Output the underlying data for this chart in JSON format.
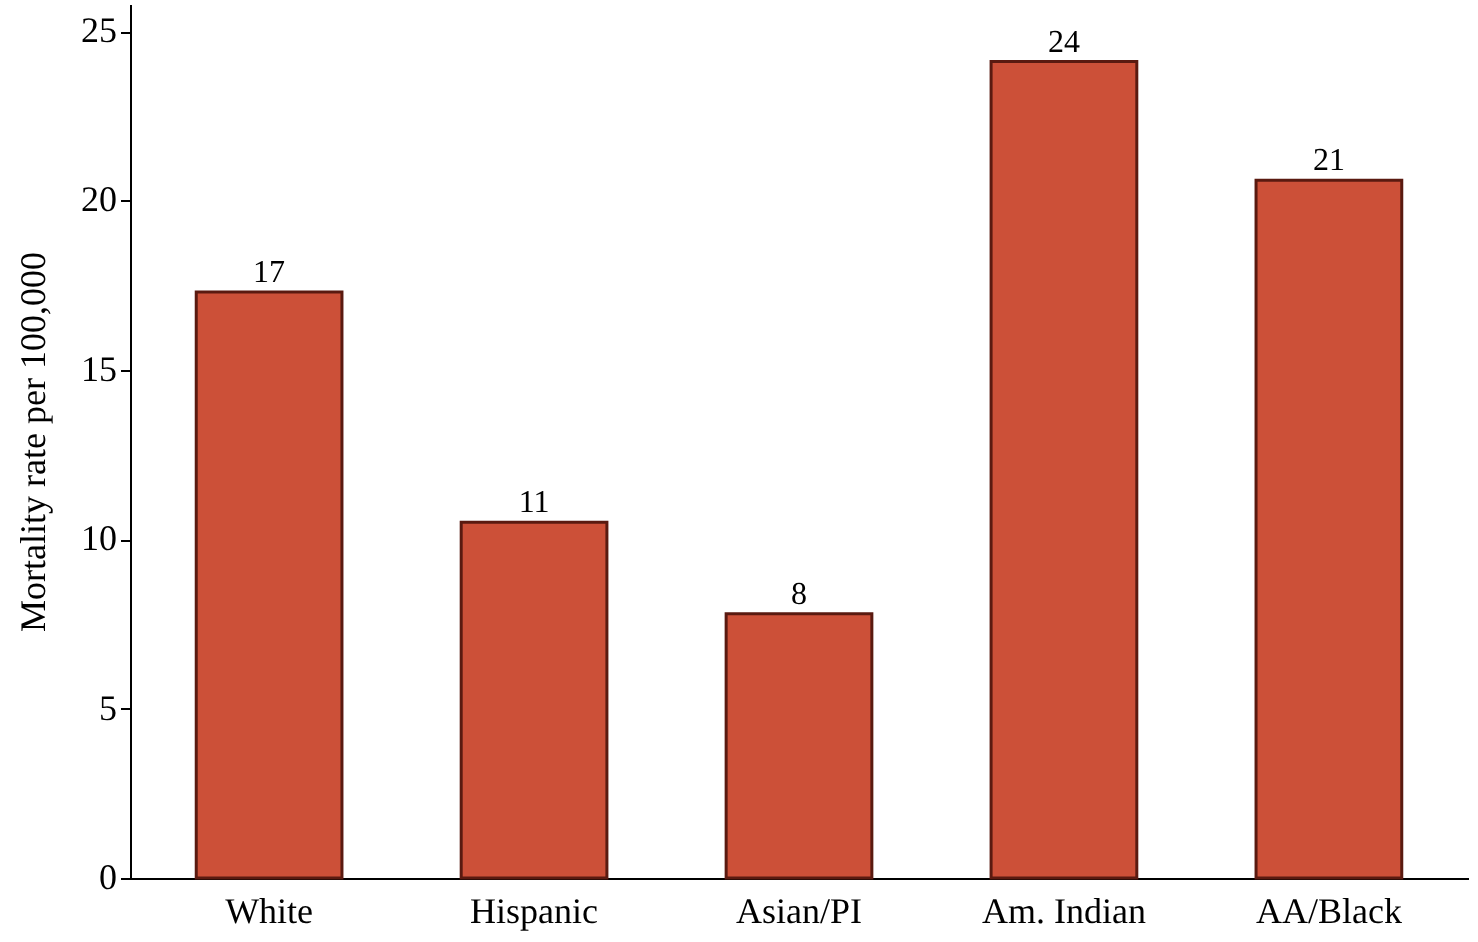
{
  "chart_data": {
    "type": "bar",
    "ylabel": "Mortality rate per 100,000",
    "categories": [
      "White",
      "Hispanic",
      "Asian/PI",
      "Am. Indian",
      "AA/Black"
    ],
    "values": [
      17.3,
      10.5,
      7.8,
      24.1,
      20.6
    ],
    "value_labels": [
      "17",
      "11",
      "8",
      "24",
      "21"
    ],
    "color": "#cc5038",
    "ylim": [
      0,
      25.8
    ],
    "yticks": [
      0,
      5,
      10,
      15,
      20,
      25
    ],
    "grid": false
  }
}
